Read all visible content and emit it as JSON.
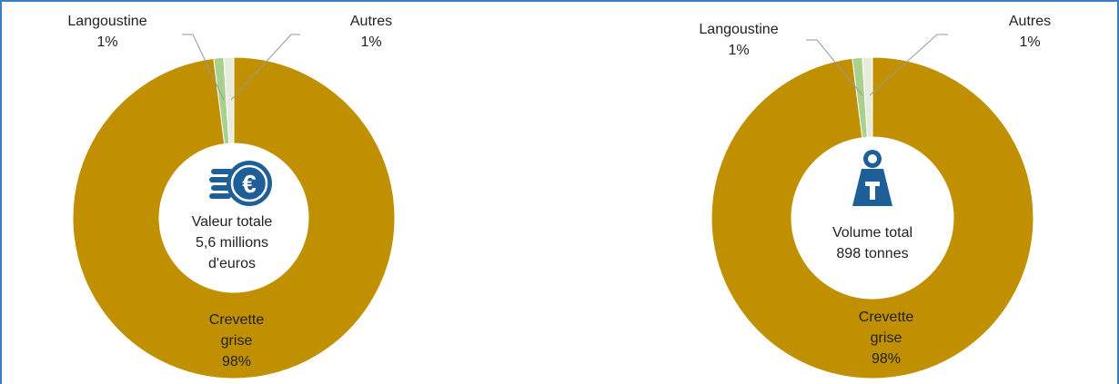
{
  "chart_data": [
    {
      "type": "pie",
      "categories": [
        "Crevette grise",
        "Langoustine",
        "Autres"
      ],
      "values": [
        98,
        1,
        1
      ],
      "colors": [
        "#c09000",
        "#a9d18e",
        "#e7eddc"
      ],
      "labels": {
        "main": [
          "Crevette",
          "grise",
          "98%"
        ],
        "langoustine": [
          "Langoustine",
          "1%"
        ],
        "autres": [
          "Autres",
          "1%"
        ]
      },
      "center_text": [
        "Valeur totale",
        "5,6 millions",
        "d'euros"
      ],
      "center_icon": "euro-coins-icon"
    },
    {
      "type": "pie",
      "categories": [
        "Crevette grise",
        "Langoustine",
        "Autres"
      ],
      "values": [
        98,
        1,
        1
      ],
      "colors": [
        "#c09000",
        "#a9d18e",
        "#e7eddc"
      ],
      "labels": {
        "main": [
          "Crevette",
          "grise",
          "98%"
        ],
        "langoustine": [
          "Langoustine",
          "1%"
        ],
        "autres": [
          "Autres",
          "1%"
        ]
      },
      "center_text": [
        "Volume total",
        "898 tonnes"
      ],
      "center_icon": "weight-icon"
    }
  ],
  "icon_color": "#1f5f99",
  "frame_color": "#3b7ec2"
}
